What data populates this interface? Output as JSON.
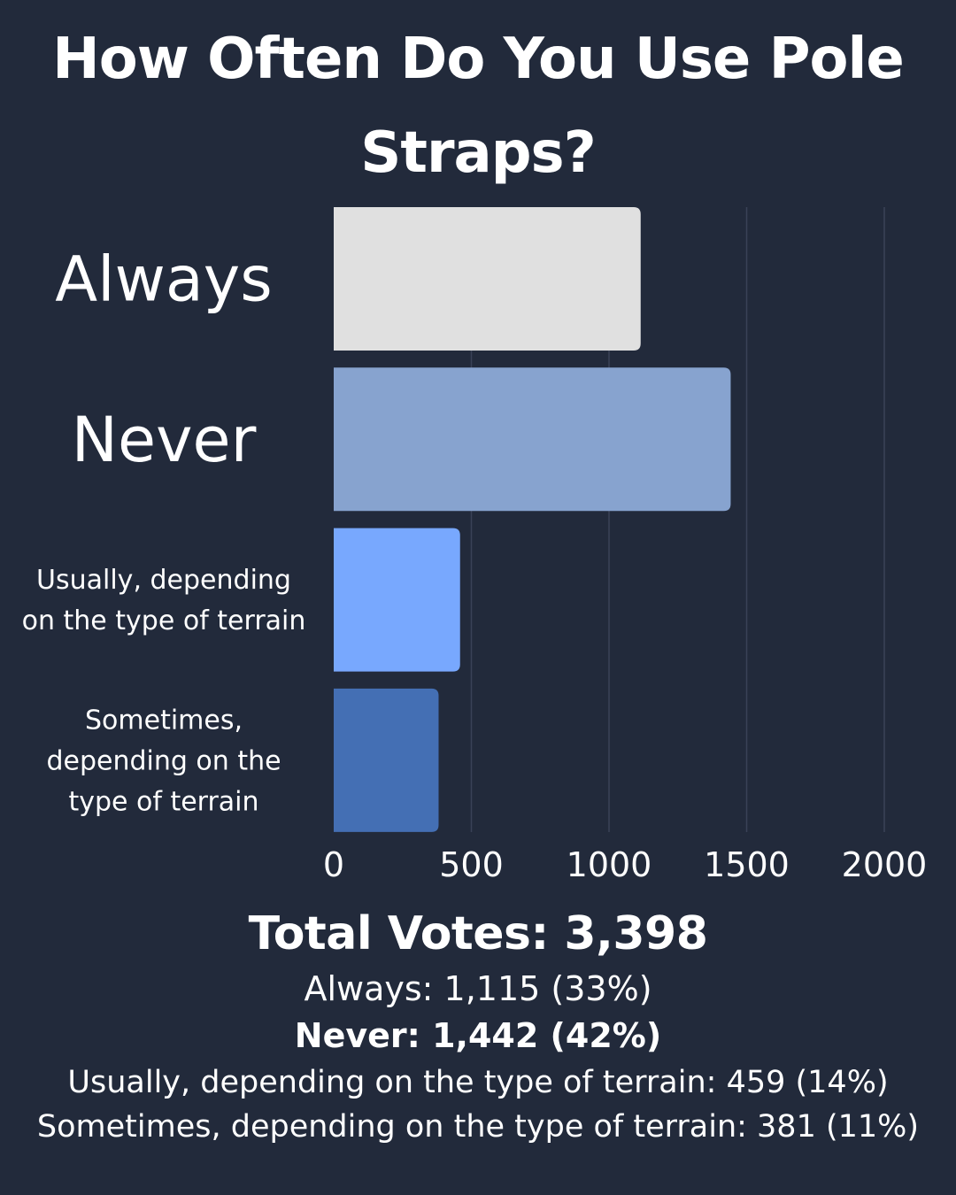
{
  "chart_data": {
    "type": "bar",
    "orientation": "horizontal",
    "title": "How Often Do You Use Pole Straps?",
    "categories": [
      "Always",
      "Never",
      "Usually, depending on the type of terrain",
      "Sometimes, depending on the type of terrain"
    ],
    "category_label_lines": [
      [
        "Always"
      ],
      [
        "Never"
      ],
      [
        "Usually, depending",
        "on the type of terrain"
      ],
      [
        "Sometimes,",
        "depending on the",
        "type of terrain"
      ]
    ],
    "values": [
      1115,
      1442,
      459,
      381
    ],
    "colors": [
      "#e0e0e0",
      "#87a3cf",
      "#78a8fe",
      "#446fb4"
    ],
    "xlim": [
      0,
      2000
    ],
    "xticks": [
      "0",
      "500",
      "1000",
      "1500",
      "2000"
    ],
    "xtick_values": [
      0,
      500,
      1000,
      1500,
      2000
    ],
    "grid": true,
    "legend": "none"
  },
  "summary": {
    "total": "Total Votes: 3,398",
    "always": "Always: 1,115 (33%)",
    "never": "Never: 1,442 (42%)",
    "usually": "Usually, depending on the type of terrain: 459 (14%)",
    "sometimes": "Sometimes, depending on the type of terrain: 381 (11%)"
  },
  "colors": {
    "background": "#222a3b",
    "text": "#ffffff",
    "gridline": "#3a4257"
  }
}
